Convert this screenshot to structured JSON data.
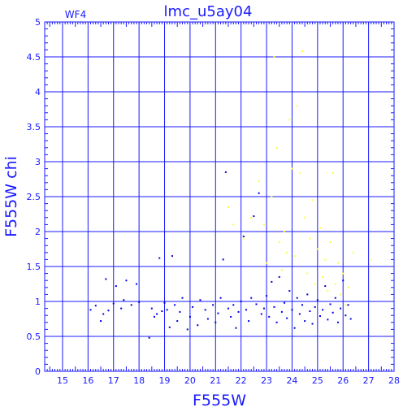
{
  "chart_data": {
    "type": "scatter",
    "title": "lmc_u5ay04",
    "chip_label": "WF4",
    "xlabel": "F555W",
    "ylabel": "F555W chi",
    "xlim": [
      14.3,
      28
    ],
    "ylim": [
      0,
      5
    ],
    "x_ticks": [
      15,
      16,
      17,
      18,
      19,
      20,
      21,
      22,
      23,
      24,
      25,
      26,
      27,
      28
    ],
    "y_ticks": [
      0,
      0.5,
      1,
      1.5,
      2,
      2.5,
      3,
      3.5,
      4,
      4.5,
      5
    ],
    "x_tick_labels": [
      "15",
      "16",
      "17",
      "18",
      "19",
      "20",
      "21",
      "22",
      "23",
      "24",
      "25",
      "26",
      "27",
      "28"
    ],
    "y_tick_labels": [
      "0",
      "0.5",
      "1",
      "1.5",
      "2",
      "2.5",
      "3",
      "3.5",
      "4",
      "4.5",
      "5"
    ],
    "grid": true,
    "colors": {
      "axes": "#1a1aff",
      "primary": "#0000e0",
      "secondary": "#ffff33"
    },
    "series": [
      {
        "color": "#0000e0",
        "points": [
          [
            16.1,
            0.88
          ],
          [
            16.3,
            0.94
          ],
          [
            16.5,
            0.72
          ],
          [
            16.6,
            0.82
          ],
          [
            16.8,
            0.87
          ],
          [
            16.7,
            1.32
          ],
          [
            17.0,
            0.97
          ],
          [
            17.1,
            1.22
          ],
          [
            17.3,
            0.9
          ],
          [
            17.4,
            1.02
          ],
          [
            17.5,
            1.3
          ],
          [
            17.7,
            0.95
          ],
          [
            17.9,
            1.25
          ],
          [
            18.0,
            0.99
          ],
          [
            18.4,
            0.48
          ],
          [
            18.5,
            0.9
          ],
          [
            18.6,
            0.78
          ],
          [
            18.7,
            0.82
          ],
          [
            18.8,
            1.62
          ],
          [
            18.9,
            0.86
          ],
          [
            19.0,
            0.98
          ],
          [
            19.1,
            0.88
          ],
          [
            19.2,
            0.63
          ],
          [
            19.3,
            1.65
          ],
          [
            19.4,
            0.95
          ],
          [
            19.5,
            0.72
          ],
          [
            19.6,
            0.85
          ],
          [
            19.7,
            1.05
          ],
          [
            19.9,
            0.6
          ],
          [
            20.0,
            0.78
          ],
          [
            20.1,
            0.92
          ],
          [
            20.3,
            0.66
          ],
          [
            20.4,
            1.02
          ],
          [
            20.6,
            0.88
          ],
          [
            20.7,
            0.75
          ],
          [
            20.9,
            0.95
          ],
          [
            21.0,
            0.7
          ],
          [
            21.1,
            0.83
          ],
          [
            21.2,
            1.05
          ],
          [
            21.3,
            1.6
          ],
          [
            21.4,
            2.85
          ],
          [
            21.5,
            0.9
          ],
          [
            21.6,
            0.78
          ],
          [
            21.7,
            0.95
          ],
          [
            21.8,
            0.62
          ],
          [
            21.9,
            0.85
          ],
          [
            22.0,
            1.0
          ],
          [
            22.1,
            1.93
          ],
          [
            22.2,
            0.88
          ],
          [
            22.3,
            0.72
          ],
          [
            22.4,
            1.05
          ],
          [
            22.5,
            2.22
          ],
          [
            22.6,
            0.96
          ],
          [
            22.7,
            2.55
          ],
          [
            22.8,
            0.82
          ],
          [
            22.9,
            0.9
          ],
          [
            23.0,
            1.08
          ],
          [
            23.1,
            0.78
          ],
          [
            23.2,
            1.28
          ],
          [
            23.3,
            0.92
          ],
          [
            23.4,
            0.7
          ],
          [
            23.5,
            1.35
          ],
          [
            23.6,
            0.85
          ],
          [
            23.7,
            0.98
          ],
          [
            23.8,
            0.76
          ],
          [
            23.9,
            1.15
          ],
          [
            24.0,
            0.88
          ],
          [
            24.1,
            0.62
          ],
          [
            24.2,
            1.05
          ],
          [
            24.3,
            0.82
          ],
          [
            24.4,
            0.95
          ],
          [
            24.5,
            0.72
          ],
          [
            24.6,
            1.1
          ],
          [
            24.7,
            0.86
          ],
          [
            24.8,
            0.68
          ],
          [
            24.9,
            0.92
          ],
          [
            25.0,
            1.02
          ],
          [
            25.1,
            0.79
          ],
          [
            25.2,
            0.88
          ],
          [
            25.3,
            1.22
          ],
          [
            25.4,
            0.74
          ],
          [
            25.5,
            0.96
          ],
          [
            25.6,
            0.84
          ],
          [
            25.7,
            1.05
          ],
          [
            25.8,
            0.7
          ],
          [
            25.9,
            0.9
          ],
          [
            26.0,
            1.3
          ],
          [
            26.1,
            0.8
          ],
          [
            26.2,
            0.95
          ],
          [
            26.3,
            0.75
          ]
        ]
      },
      {
        "color": "#ffff33",
        "points": [
          [
            21.5,
            2.35
          ],
          [
            21.7,
            2.1
          ],
          [
            22.1,
            1.9
          ],
          [
            22.4,
            2.2
          ],
          [
            22.7,
            2.72
          ],
          [
            22.9,
            2.1
          ],
          [
            23.0,
            1.55
          ],
          [
            23.2,
            2.5
          ],
          [
            23.3,
            4.5
          ],
          [
            23.4,
            3.2
          ],
          [
            23.5,
            1.85
          ],
          [
            23.6,
            1.45
          ],
          [
            23.7,
            2.0
          ],
          [
            23.8,
            1.7
          ],
          [
            23.9,
            3.6
          ],
          [
            24.0,
            2.9
          ],
          [
            24.1,
            1.65
          ],
          [
            24.2,
            3.8
          ],
          [
            24.3,
            2.84
          ],
          [
            24.4,
            4.58
          ],
          [
            24.5,
            2.2
          ],
          [
            24.6,
            1.4
          ],
          [
            24.7,
            1.9
          ],
          [
            24.8,
            2.45
          ],
          [
            24.9,
            1.25
          ],
          [
            25.0,
            1.75
          ],
          [
            25.1,
            2.05
          ],
          [
            25.2,
            1.35
          ],
          [
            25.3,
            1.6
          ],
          [
            25.4,
            1.15
          ],
          [
            25.5,
            1.85
          ],
          [
            25.6,
            2.84
          ],
          [
            25.7,
            1.25
          ],
          [
            25.8,
            1.55
          ],
          [
            25.9,
            1.1
          ],
          [
            26.0,
            1.4
          ],
          [
            26.1,
            0.95
          ],
          [
            26.2,
            1.2
          ],
          [
            26.4,
            1.7
          ],
          [
            27.1,
            1.6
          ]
        ]
      }
    ]
  }
}
